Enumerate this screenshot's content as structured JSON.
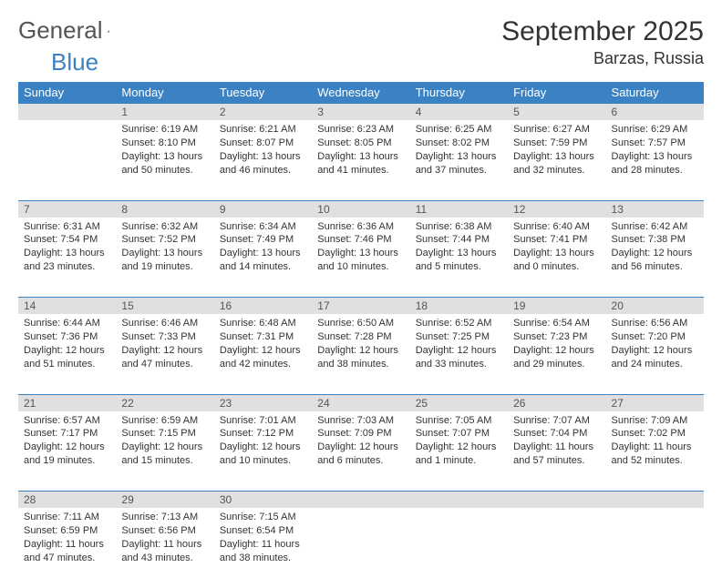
{
  "brand": {
    "part1": "General",
    "part2": "Blue"
  },
  "title": "September 2025",
  "location": "Barzas, Russia",
  "colors": {
    "header_bg": "#3b82c4",
    "header_text": "#ffffff",
    "daynum_bg": "#e0e0e0",
    "row_divider": "#3b82c4",
    "text": "#333333",
    "brand_gray": "#555555",
    "brand_blue": "#3b82c4"
  },
  "columns": [
    "Sunday",
    "Monday",
    "Tuesday",
    "Wednesday",
    "Thursday",
    "Friday",
    "Saturday"
  ],
  "weeks": [
    [
      null,
      {
        "n": "1",
        "sr": "6:19 AM",
        "ss": "8:10 PM",
        "dl": "13 hours and 50 minutes."
      },
      {
        "n": "2",
        "sr": "6:21 AM",
        "ss": "8:07 PM",
        "dl": "13 hours and 46 minutes."
      },
      {
        "n": "3",
        "sr": "6:23 AM",
        "ss": "8:05 PM",
        "dl": "13 hours and 41 minutes."
      },
      {
        "n": "4",
        "sr": "6:25 AM",
        "ss": "8:02 PM",
        "dl": "13 hours and 37 minutes."
      },
      {
        "n": "5",
        "sr": "6:27 AM",
        "ss": "7:59 PM",
        "dl": "13 hours and 32 minutes."
      },
      {
        "n": "6",
        "sr": "6:29 AM",
        "ss": "7:57 PM",
        "dl": "13 hours and 28 minutes."
      }
    ],
    [
      {
        "n": "7",
        "sr": "6:31 AM",
        "ss": "7:54 PM",
        "dl": "13 hours and 23 minutes."
      },
      {
        "n": "8",
        "sr": "6:32 AM",
        "ss": "7:52 PM",
        "dl": "13 hours and 19 minutes."
      },
      {
        "n": "9",
        "sr": "6:34 AM",
        "ss": "7:49 PM",
        "dl": "13 hours and 14 minutes."
      },
      {
        "n": "10",
        "sr": "6:36 AM",
        "ss": "7:46 PM",
        "dl": "13 hours and 10 minutes."
      },
      {
        "n": "11",
        "sr": "6:38 AM",
        "ss": "7:44 PM",
        "dl": "13 hours and 5 minutes."
      },
      {
        "n": "12",
        "sr": "6:40 AM",
        "ss": "7:41 PM",
        "dl": "13 hours and 0 minutes."
      },
      {
        "n": "13",
        "sr": "6:42 AM",
        "ss": "7:38 PM",
        "dl": "12 hours and 56 minutes."
      }
    ],
    [
      {
        "n": "14",
        "sr": "6:44 AM",
        "ss": "7:36 PM",
        "dl": "12 hours and 51 minutes."
      },
      {
        "n": "15",
        "sr": "6:46 AM",
        "ss": "7:33 PM",
        "dl": "12 hours and 47 minutes."
      },
      {
        "n": "16",
        "sr": "6:48 AM",
        "ss": "7:31 PM",
        "dl": "12 hours and 42 minutes."
      },
      {
        "n": "17",
        "sr": "6:50 AM",
        "ss": "7:28 PM",
        "dl": "12 hours and 38 minutes."
      },
      {
        "n": "18",
        "sr": "6:52 AM",
        "ss": "7:25 PM",
        "dl": "12 hours and 33 minutes."
      },
      {
        "n": "19",
        "sr": "6:54 AM",
        "ss": "7:23 PM",
        "dl": "12 hours and 29 minutes."
      },
      {
        "n": "20",
        "sr": "6:56 AM",
        "ss": "7:20 PM",
        "dl": "12 hours and 24 minutes."
      }
    ],
    [
      {
        "n": "21",
        "sr": "6:57 AM",
        "ss": "7:17 PM",
        "dl": "12 hours and 19 minutes."
      },
      {
        "n": "22",
        "sr": "6:59 AM",
        "ss": "7:15 PM",
        "dl": "12 hours and 15 minutes."
      },
      {
        "n": "23",
        "sr": "7:01 AM",
        "ss": "7:12 PM",
        "dl": "12 hours and 10 minutes."
      },
      {
        "n": "24",
        "sr": "7:03 AM",
        "ss": "7:09 PM",
        "dl": "12 hours and 6 minutes."
      },
      {
        "n": "25",
        "sr": "7:05 AM",
        "ss": "7:07 PM",
        "dl": "12 hours and 1 minute."
      },
      {
        "n": "26",
        "sr": "7:07 AM",
        "ss": "7:04 PM",
        "dl": "11 hours and 57 minutes."
      },
      {
        "n": "27",
        "sr": "7:09 AM",
        "ss": "7:02 PM",
        "dl": "11 hours and 52 minutes."
      }
    ],
    [
      {
        "n": "28",
        "sr": "7:11 AM",
        "ss": "6:59 PM",
        "dl": "11 hours and 47 minutes."
      },
      {
        "n": "29",
        "sr": "7:13 AM",
        "ss": "6:56 PM",
        "dl": "11 hours and 43 minutes."
      },
      {
        "n": "30",
        "sr": "7:15 AM",
        "ss": "6:54 PM",
        "dl": "11 hours and 38 minutes."
      },
      null,
      null,
      null,
      null
    ]
  ],
  "labels": {
    "sunrise": "Sunrise:",
    "sunset": "Sunset:",
    "daylight": "Daylight:"
  }
}
